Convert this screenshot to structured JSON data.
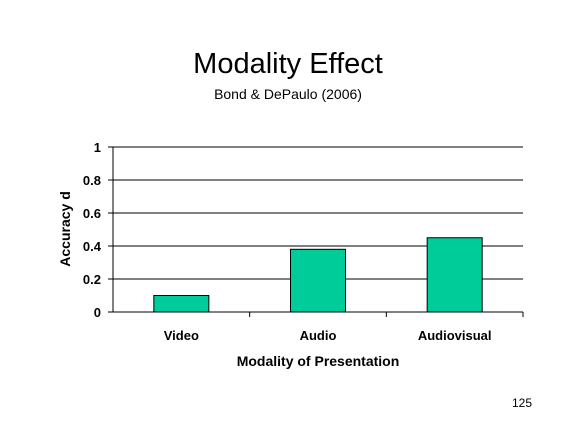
{
  "slide": {
    "page_number": "125"
  },
  "chart_data": {
    "type": "bar",
    "title": "Modality Effect",
    "subtitle": "Bond & DePaulo (2006)",
    "categories": [
      "Video",
      "Audio",
      "Audiovisual"
    ],
    "values": [
      0.1,
      0.38,
      0.45
    ],
    "xlabel": "Modality of Presentation",
    "ylabel": "Accuracy d",
    "ylim": [
      0,
      1
    ],
    "yticks": [
      0,
      0.2,
      0.4,
      0.6,
      0.8,
      1
    ],
    "ytick_labels": [
      "0",
      "0.2",
      "0.4",
      "0.6",
      "0.8",
      "1"
    ],
    "grid": true,
    "legend": "none",
    "bar_color": "#00cc99"
  }
}
